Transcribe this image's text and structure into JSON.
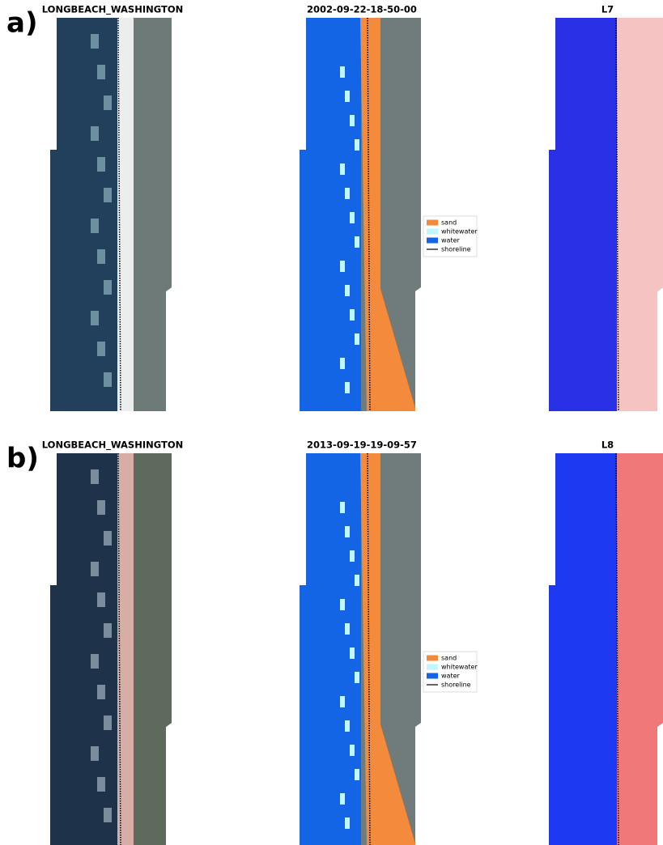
{
  "panels": [
    {
      "label": "a)",
      "titles": [
        "LONGBEACH_WASHINGTON",
        "2002-09-22-18-50-00",
        "L7"
      ],
      "legend": [
        "sand",
        "whitewater",
        "water",
        "shoreline"
      ]
    },
    {
      "label": "b)",
      "titles": [
        "LONGBEACH_WASHINGTON",
        "2013-09-19-19-09-57",
        "L8"
      ],
      "legend": [
        "sand",
        "whitewater",
        "water",
        "shoreline"
      ]
    }
  ]
}
